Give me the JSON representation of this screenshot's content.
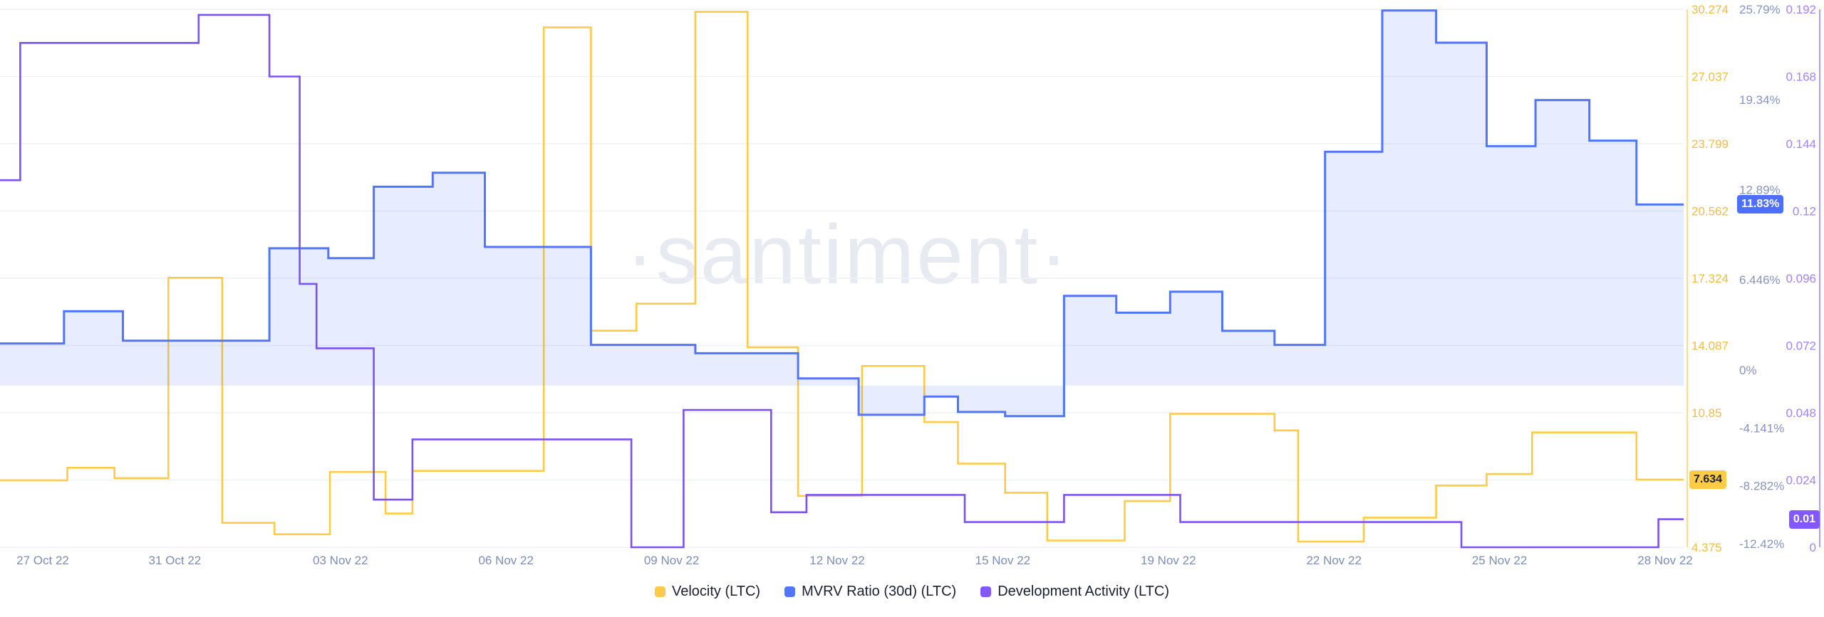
{
  "watermark": "·santiment·",
  "legend": {
    "items": [
      {
        "label": "Velocity (LTC)",
        "color": "#ffcb47"
      },
      {
        "label": "MVRV Ratio (30d) (LTC)",
        "color": "#5275ff"
      },
      {
        "label": "Development Activity (LTC)",
        "color": "#8358ff"
      }
    ]
  },
  "chart_data": {
    "type": "line",
    "step": true,
    "grid": "horizontal",
    "legend_position": "bottom",
    "x_labels": [
      "27 Oct 22",
      "31 Oct 22",
      "03 Nov 22",
      "06 Nov 22",
      "09 Nov 22",
      "12 Nov 22",
      "15 Nov 22",
      "19 Nov 22",
      "22 Nov 22",
      "25 Nov 22",
      "28 Nov 22"
    ],
    "series": [
      {
        "id": "velocity",
        "name": "Velocity (LTC)",
        "color": "#ffcb47",
        "width": 2.6,
        "axis_range": [
          4.375,
          30.274
        ],
        "axis_ticks": [
          {
            "label": "30.274",
            "v": 30.274
          },
          {
            "label": "27.037",
            "v": 27.037
          },
          {
            "label": "23.799",
            "v": 23.799
          },
          {
            "label": "20.562",
            "v": 20.562
          },
          {
            "label": "17.324",
            "v": 17.324
          },
          {
            "label": "14.087",
            "v": 14.087
          },
          {
            "label": "10.85",
            "v": 10.85
          },
          {
            "label": "4.375",
            "v": 4.375
          }
        ],
        "badge": {
          "label": "7.634",
          "v": 7.634,
          "bg": "#ffcb47",
          "fg": "#1e2233"
        },
        "points": [
          [
            0.0,
            7.6
          ],
          [
            0.04,
            8.2
          ],
          [
            0.068,
            7.7
          ],
          [
            0.1,
            17.35
          ],
          [
            0.132,
            5.55
          ],
          [
            0.163,
            5.0
          ],
          [
            0.196,
            8.0
          ],
          [
            0.229,
            6.0
          ],
          [
            0.245,
            8.05
          ],
          [
            0.323,
            29.4
          ],
          [
            0.351,
            14.8
          ],
          [
            0.378,
            16.1
          ],
          [
            0.413,
            30.15
          ],
          [
            0.444,
            14.0
          ],
          [
            0.474,
            6.85
          ],
          [
            0.512,
            13.1
          ],
          [
            0.549,
            10.4
          ],
          [
            0.569,
            8.4
          ],
          [
            0.597,
            7.0
          ],
          [
            0.622,
            4.7
          ],
          [
            0.668,
            6.6
          ],
          [
            0.695,
            10.8
          ],
          [
            0.757,
            10.0
          ],
          [
            0.771,
            4.65
          ],
          [
            0.81,
            5.8
          ],
          [
            0.853,
            7.35
          ],
          [
            0.883,
            7.9
          ],
          [
            0.91,
            9.9
          ],
          [
            0.972,
            7.634
          ]
        ]
      },
      {
        "id": "mvrv",
        "name": "MVRV Ratio (30d) (LTC)",
        "color": "#5275ff",
        "width": 3,
        "fill": "rgba(82,117,255,0.14)",
        "fill_baseline": -1.12,
        "axis_range": [
          -12.67,
          25.79
        ],
        "axis_ticks": [
          {
            "label": "25.79%",
            "v": 25.79
          },
          {
            "label": "19.34%",
            "v": 19.34
          },
          {
            "label": "12.89%",
            "v": 12.89
          },
          {
            "label": "6.446%",
            "v": 6.446
          },
          {
            "label": "0%",
            "v": 0
          },
          {
            "label": "-4.141%",
            "v": -4.141
          },
          {
            "label": "-8.282%",
            "v": -8.282
          },
          {
            "label": "-12.42%",
            "v": -12.42
          }
        ],
        "badge": {
          "label": "11.83%",
          "v": 11.83,
          "bg": "#4c6fff",
          "fg": "#ffffff"
        },
        "points": [
          [
            0.0,
            1.9
          ],
          [
            0.038,
            4.2
          ],
          [
            0.073,
            2.1
          ],
          [
            0.16,
            8.7
          ],
          [
            0.195,
            8.0
          ],
          [
            0.222,
            13.1
          ],
          [
            0.257,
            14.1
          ],
          [
            0.288,
            8.8
          ],
          [
            0.351,
            1.8
          ],
          [
            0.413,
            1.2
          ],
          [
            0.474,
            -0.6
          ],
          [
            0.51,
            -3.2
          ],
          [
            0.549,
            -1.9
          ],
          [
            0.569,
            -3.0
          ],
          [
            0.597,
            -3.3
          ],
          [
            0.632,
            5.3
          ],
          [
            0.663,
            4.1
          ],
          [
            0.695,
            5.6
          ],
          [
            0.726,
            2.8
          ],
          [
            0.757,
            1.8
          ],
          [
            0.787,
            15.6
          ],
          [
            0.821,
            25.7
          ],
          [
            0.853,
            23.4
          ],
          [
            0.883,
            16.0
          ],
          [
            0.912,
            19.3
          ],
          [
            0.944,
            16.4
          ],
          [
            0.972,
            11.83
          ]
        ]
      },
      {
        "id": "dev_activity",
        "name": "Development Activity (LTC)",
        "color": "#7a52f4",
        "width": 2.6,
        "axis_range": [
          0,
          0.192
        ],
        "axis_ticks": [
          {
            "label": "0.192",
            "v": 0.192
          },
          {
            "label": "0.168",
            "v": 0.168
          },
          {
            "label": "0.144",
            "v": 0.144
          },
          {
            "label": "0.12",
            "v": 0.12
          },
          {
            "label": "0.096",
            "v": 0.096
          },
          {
            "label": "0.072",
            "v": 0.072
          },
          {
            "label": "0.048",
            "v": 0.048
          },
          {
            "label": "0.024",
            "v": 0.024
          },
          {
            "label": "0",
            "v": 0
          }
        ],
        "badge": {
          "label": "0.01",
          "v": 0.01,
          "bg": "#8358ff",
          "fg": "#ffffff"
        },
        "points": [
          [
            0.0,
            0.131
          ],
          [
            0.012,
            0.18
          ],
          [
            0.118,
            0.19
          ],
          [
            0.16,
            0.168
          ],
          [
            0.178,
            0.094
          ],
          [
            0.188,
            0.071
          ],
          [
            0.222,
            0.017
          ],
          [
            0.245,
            0.0385
          ],
          [
            0.375,
            0.0
          ],
          [
            0.406,
            0.049
          ],
          [
            0.458,
            0.0125
          ],
          [
            0.479,
            0.0187
          ],
          [
            0.573,
            0.009
          ],
          [
            0.632,
            0.0187
          ],
          [
            0.701,
            0.009
          ],
          [
            0.868,
            0.0
          ],
          [
            0.985,
            0.01
          ]
        ]
      }
    ]
  }
}
